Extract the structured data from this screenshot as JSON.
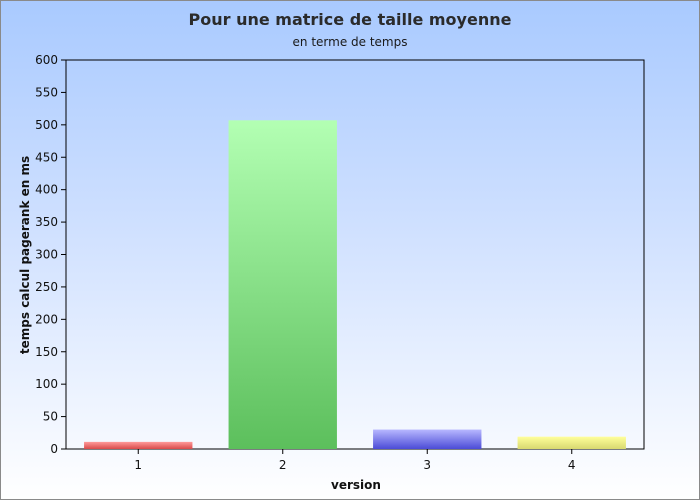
{
  "chart_data": {
    "type": "bar",
    "title": "Pour une matrice de taille moyenne",
    "subtitle": "en terme de temps",
    "xlabel": "version",
    "ylabel": "temps calcul pagerank en ms",
    "categories": [
      "1",
      "2",
      "3",
      "4"
    ],
    "values": [
      11,
      507,
      30,
      19
    ],
    "ylim": [
      0,
      600
    ],
    "yticks": [
      0,
      50,
      100,
      150,
      200,
      250,
      300,
      350,
      400,
      450,
      500,
      550,
      600
    ],
    "grid": false,
    "legend": "none",
    "bar_colors": [
      {
        "top": "#ff9a9a",
        "bottom": "#d94a4a"
      },
      {
        "top": "#b3ffb3",
        "bottom": "#5cbf5c"
      },
      {
        "top": "#b8b8ff",
        "bottom": "#4b4bd6"
      },
      {
        "top": "#ffff9a",
        "bottom": "#d8d870"
      }
    ]
  }
}
